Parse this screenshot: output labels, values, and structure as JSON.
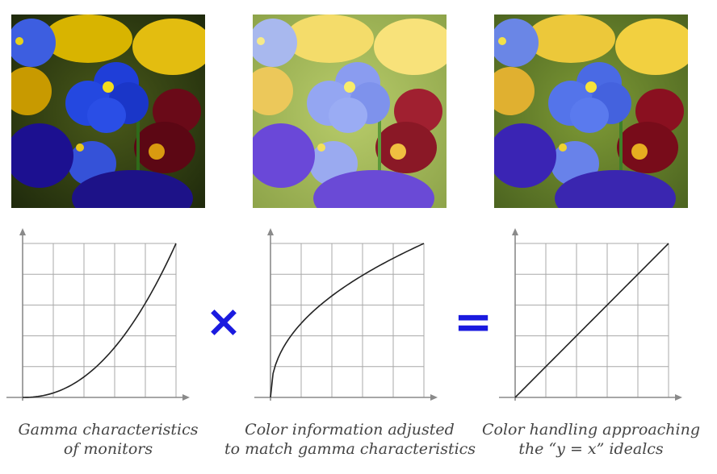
{
  "colors": {
    "operator": "#1a1adf",
    "grid": "#a8a8a8",
    "axis": "#8a8a8a",
    "curve": "#222222",
    "caption": "#444444"
  },
  "panels": [
    {
      "photo": {
        "subject": "pansy flowers",
        "variant": "dark"
      },
      "curve": "gamma-convex",
      "caption": [
        "Gamma characteristics",
        "of monitors"
      ]
    },
    {
      "photo": {
        "subject": "pansy flowers",
        "variant": "washed-out"
      },
      "curve": "gamma-concave",
      "caption": [
        "Color information adjusted",
        "to match gamma characteristics"
      ]
    },
    {
      "photo": {
        "subject": "pansy flowers",
        "variant": "balanced"
      },
      "curve": "linear",
      "caption": [
        "Color handling approaching",
        "the “y = x” idealcs"
      ]
    }
  ],
  "operators": {
    "multiply": "×",
    "equals": "="
  },
  "chart_data": [
    {
      "type": "line",
      "grid_cols": 5,
      "grid_rows": 5,
      "series": [
        {
          "curve": "y = x^2.2"
        }
      ]
    },
    {
      "type": "line",
      "grid_cols": 5,
      "grid_rows": 5,
      "series": [
        {
          "curve": "y = x^(1/2.2)"
        }
      ]
    },
    {
      "type": "line",
      "grid_cols": 5,
      "grid_rows": 5,
      "series": [
        {
          "curve": "y = x"
        }
      ]
    }
  ]
}
